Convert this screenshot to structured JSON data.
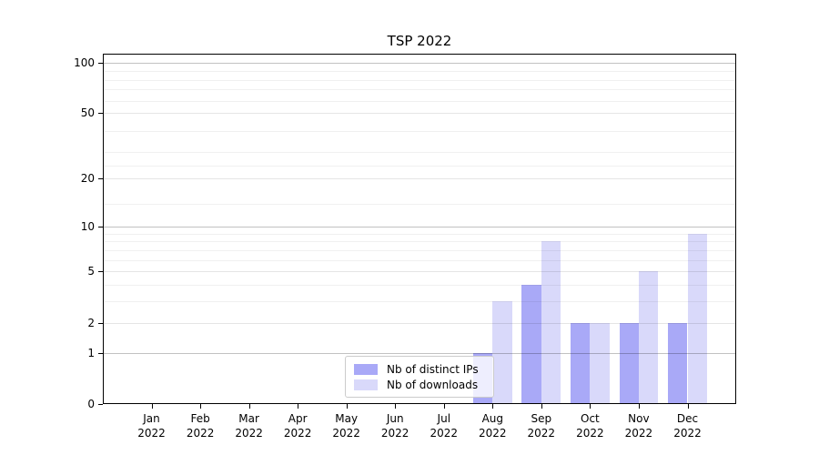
{
  "chart_data": {
    "type": "bar",
    "title": "TSP 2022",
    "categories": [
      "Jan",
      "Feb",
      "Mar",
      "Apr",
      "May",
      "Jun",
      "Jul",
      "Aug",
      "Sep",
      "Oct",
      "Nov",
      "Dec"
    ],
    "x_tick_year_line": "2022",
    "series": [
      {
        "name": "Nb of distinct IPs",
        "color": "#a9a9f7",
        "values": [
          0,
          0,
          0,
          0,
          0,
          0,
          0,
          1,
          4,
          2,
          2,
          2
        ]
      },
      {
        "name": "Nb of downloads",
        "color": "#d9d9fa",
        "values": [
          0,
          0,
          0,
          0,
          0,
          0,
          0,
          3,
          8,
          2,
          5,
          9
        ]
      }
    ],
    "y_axis": {
      "scale": "log1p",
      "ticks": [
        0,
        1,
        2,
        5,
        10,
        20,
        50,
        100
      ],
      "emphasized_gridlines": [
        1,
        10,
        100
      ],
      "minor_gridlines": [
        3,
        4,
        6,
        7,
        8,
        9,
        14,
        24,
        29,
        39,
        59,
        69,
        79,
        89
      ],
      "range": [
        0,
        114
      ]
    },
    "grid": "horizontal",
    "legend": {
      "position": "lower-center",
      "background": "rgba(255,255,255,0.8)",
      "border_color": "#cccccc"
    }
  }
}
